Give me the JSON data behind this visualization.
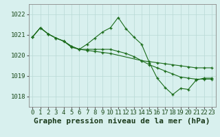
{
  "xlabel": "Graphe pression niveau de la mer (hPa)",
  "xlim": [
    -0.5,
    23.5
  ],
  "ylim": [
    1017.5,
    1022.5
  ],
  "yticks": [
    1018,
    1019,
    1020,
    1021,
    1022
  ],
  "xticks": [
    0,
    1,
    2,
    3,
    4,
    5,
    6,
    7,
    8,
    9,
    10,
    11,
    12,
    13,
    14,
    15,
    16,
    17,
    18,
    19,
    20,
    21,
    22,
    23
  ],
  "line1_x": [
    0,
    1,
    2,
    3,
    4,
    5,
    6,
    7,
    8,
    9,
    10,
    11,
    12,
    13,
    14,
    15,
    16,
    17,
    18,
    19,
    20,
    21,
    22,
    23
  ],
  "line1_y": [
    1020.9,
    1021.35,
    1021.05,
    1020.85,
    1020.7,
    1020.45,
    1020.3,
    1020.55,
    1020.85,
    1021.15,
    1021.35,
    1021.85,
    1021.3,
    1020.9,
    1020.55,
    1019.65,
    1018.9,
    1018.45,
    1018.1,
    1018.4,
    1018.35,
    1018.8,
    1018.9,
    1018.9
  ],
  "line2_x": [
    0,
    1,
    2,
    3,
    4,
    5,
    6,
    7,
    8,
    9,
    10,
    11,
    12,
    13,
    14,
    15,
    16,
    17,
    18,
    19,
    20,
    21,
    22,
    23
  ],
  "line2_y": [
    1020.9,
    1021.35,
    1021.05,
    1020.85,
    1020.7,
    1020.4,
    1020.3,
    1020.3,
    1020.3,
    1020.3,
    1020.3,
    1020.2,
    1020.1,
    1019.95,
    1019.75,
    1019.55,
    1019.4,
    1019.25,
    1019.1,
    1018.95,
    1018.9,
    1018.85,
    1018.85,
    1018.85
  ],
  "line3_x": [
    0,
    1,
    2,
    3,
    4,
    5,
    6,
    7,
    8,
    9,
    10,
    14,
    15,
    16,
    17,
    18,
    19,
    20,
    21,
    22,
    23
  ],
  "line3_y": [
    1020.9,
    1021.35,
    1021.05,
    1020.85,
    1020.7,
    1020.45,
    1020.3,
    1020.25,
    1020.2,
    1020.15,
    1020.1,
    1019.75,
    1019.7,
    1019.65,
    1019.6,
    1019.55,
    1019.5,
    1019.45,
    1019.4,
    1019.4,
    1019.4
  ],
  "line_color": "#1a6b1a",
  "bg_color": "#d8f0ee",
  "grid_color": "#b8d8d5",
  "tick_fontsize": 6.5,
  "label_fontsize": 8,
  "marker_size": 3,
  "marker_ew": 0.9
}
